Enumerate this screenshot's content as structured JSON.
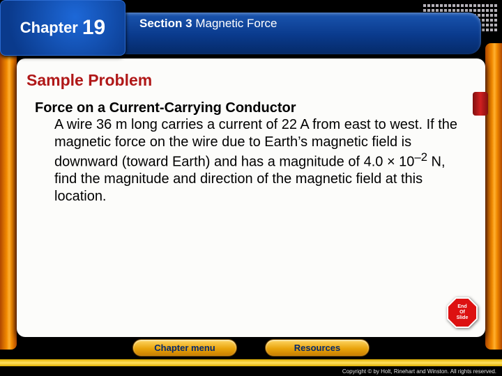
{
  "chapter": {
    "label": "Chapter",
    "number": "19"
  },
  "section": {
    "prefix": "Section 3",
    "title": "Magnetic Force"
  },
  "heading": "Sample Problem",
  "problem": {
    "title": "Force on a Current-Carrying Conductor",
    "body_html": "A wire 36 m long carries a current of 22 A from east to west. If the magnetic force on the wire due to Earth’s magnetic field is downward (toward Earth) and has a magnitude of 4.0 × 10<sup>–2</sup> N, find the magnitude and direction of the magnetic field at this location."
  },
  "stopsign": {
    "line1": "End",
    "line2": "Of",
    "line3": "Slide"
  },
  "buttons": {
    "chapter_menu": "Chapter menu",
    "resources": "Resources"
  },
  "copyright": "Copyright © by Holt, Rinehart and Winston. All rights reserved.",
  "colors": {
    "red_heading": "#b01818",
    "blue_deep": "#0a3a8c",
    "gold": "#e9a40c",
    "panel_bg": "#fcfcfa"
  }
}
